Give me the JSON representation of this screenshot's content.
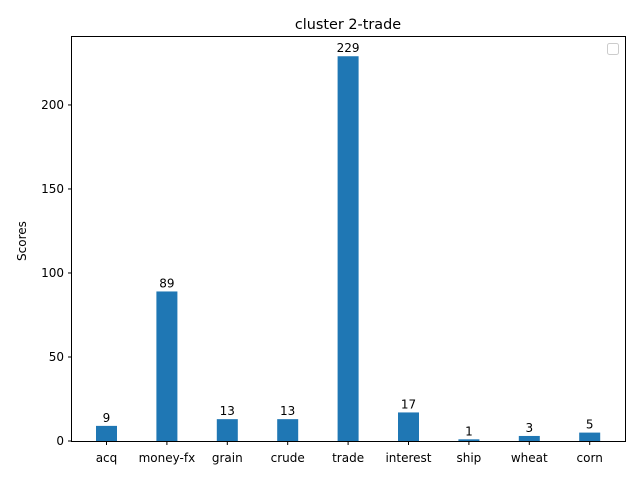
{
  "chart_data": {
    "type": "bar",
    "title": "cluster 2-trade",
    "xlabel": "",
    "ylabel": "Scores",
    "categories": [
      "acq",
      "money-fx",
      "grain",
      "crude",
      "trade",
      "interest",
      "ship",
      "wheat",
      "corn"
    ],
    "values": [
      9,
      89,
      13,
      13,
      229,
      17,
      1,
      3,
      5
    ],
    "ylim": [
      0,
      240.45
    ],
    "yticks": [
      0,
      50,
      100,
      150,
      200
    ],
    "bar_color": "#1f77b4",
    "grid": false,
    "legend": "top-right (empty)"
  }
}
